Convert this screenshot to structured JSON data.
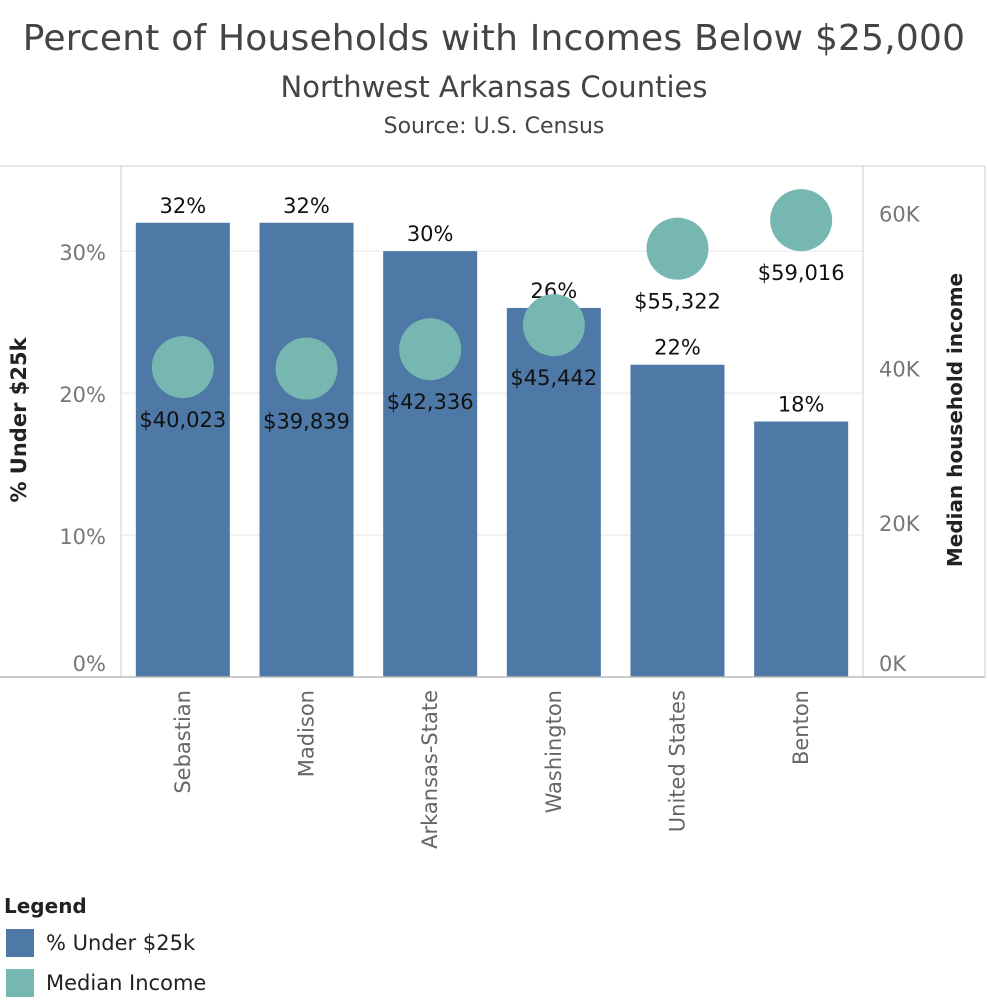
{
  "title": "Percent of Households with Incomes Below $25,000",
  "subtitle": "Northwest Arkansas Counties",
  "source": "Source: U.S. Census",
  "colors": {
    "bar": "#4e79a7",
    "circle": "#76b7b2",
    "grid": "#e6e6e6",
    "axis": "#cccccc"
  },
  "legend": {
    "title": "Legend",
    "items": [
      {
        "label": "% Under $25k",
        "color": "#4e79a7"
      },
      {
        "label": "Median Income",
        "color": "#76b7b2"
      }
    ]
  },
  "chart_data": {
    "type": "bar",
    "categories": [
      "Sebastian",
      "Madison",
      "Arkansas-State",
      "Washington",
      "United States",
      "Benton"
    ],
    "series": [
      {
        "name": "% Under $25k",
        "axis": "left",
        "mark": "bar",
        "values": [
          32,
          32,
          30,
          26,
          22,
          18
        ],
        "labels": [
          "32%",
          "32%",
          "30%",
          "26%",
          "22%",
          "18%"
        ]
      },
      {
        "name": "Median Income",
        "axis": "right",
        "mark": "circle",
        "values": [
          40023,
          39839,
          42336,
          45442,
          55322,
          59016
        ],
        "labels": [
          "$40,023",
          "$39,839",
          "$42,336",
          "$45,442",
          "$55,322",
          "$59,016"
        ]
      }
    ],
    "y_left": {
      "label": "% Under $25k",
      "lim": [
        0,
        36
      ],
      "ticks": [
        0,
        10,
        20,
        30
      ],
      "tick_labels": [
        "0%",
        "10%",
        "20%",
        "30%"
      ]
    },
    "y_right": {
      "label": "Median household income",
      "lim": [
        0,
        66000
      ],
      "ticks": [
        0,
        20000,
        40000,
        60000
      ],
      "tick_labels": [
        "0K",
        "20K",
        "40K",
        "60K"
      ]
    },
    "grid": true
  }
}
